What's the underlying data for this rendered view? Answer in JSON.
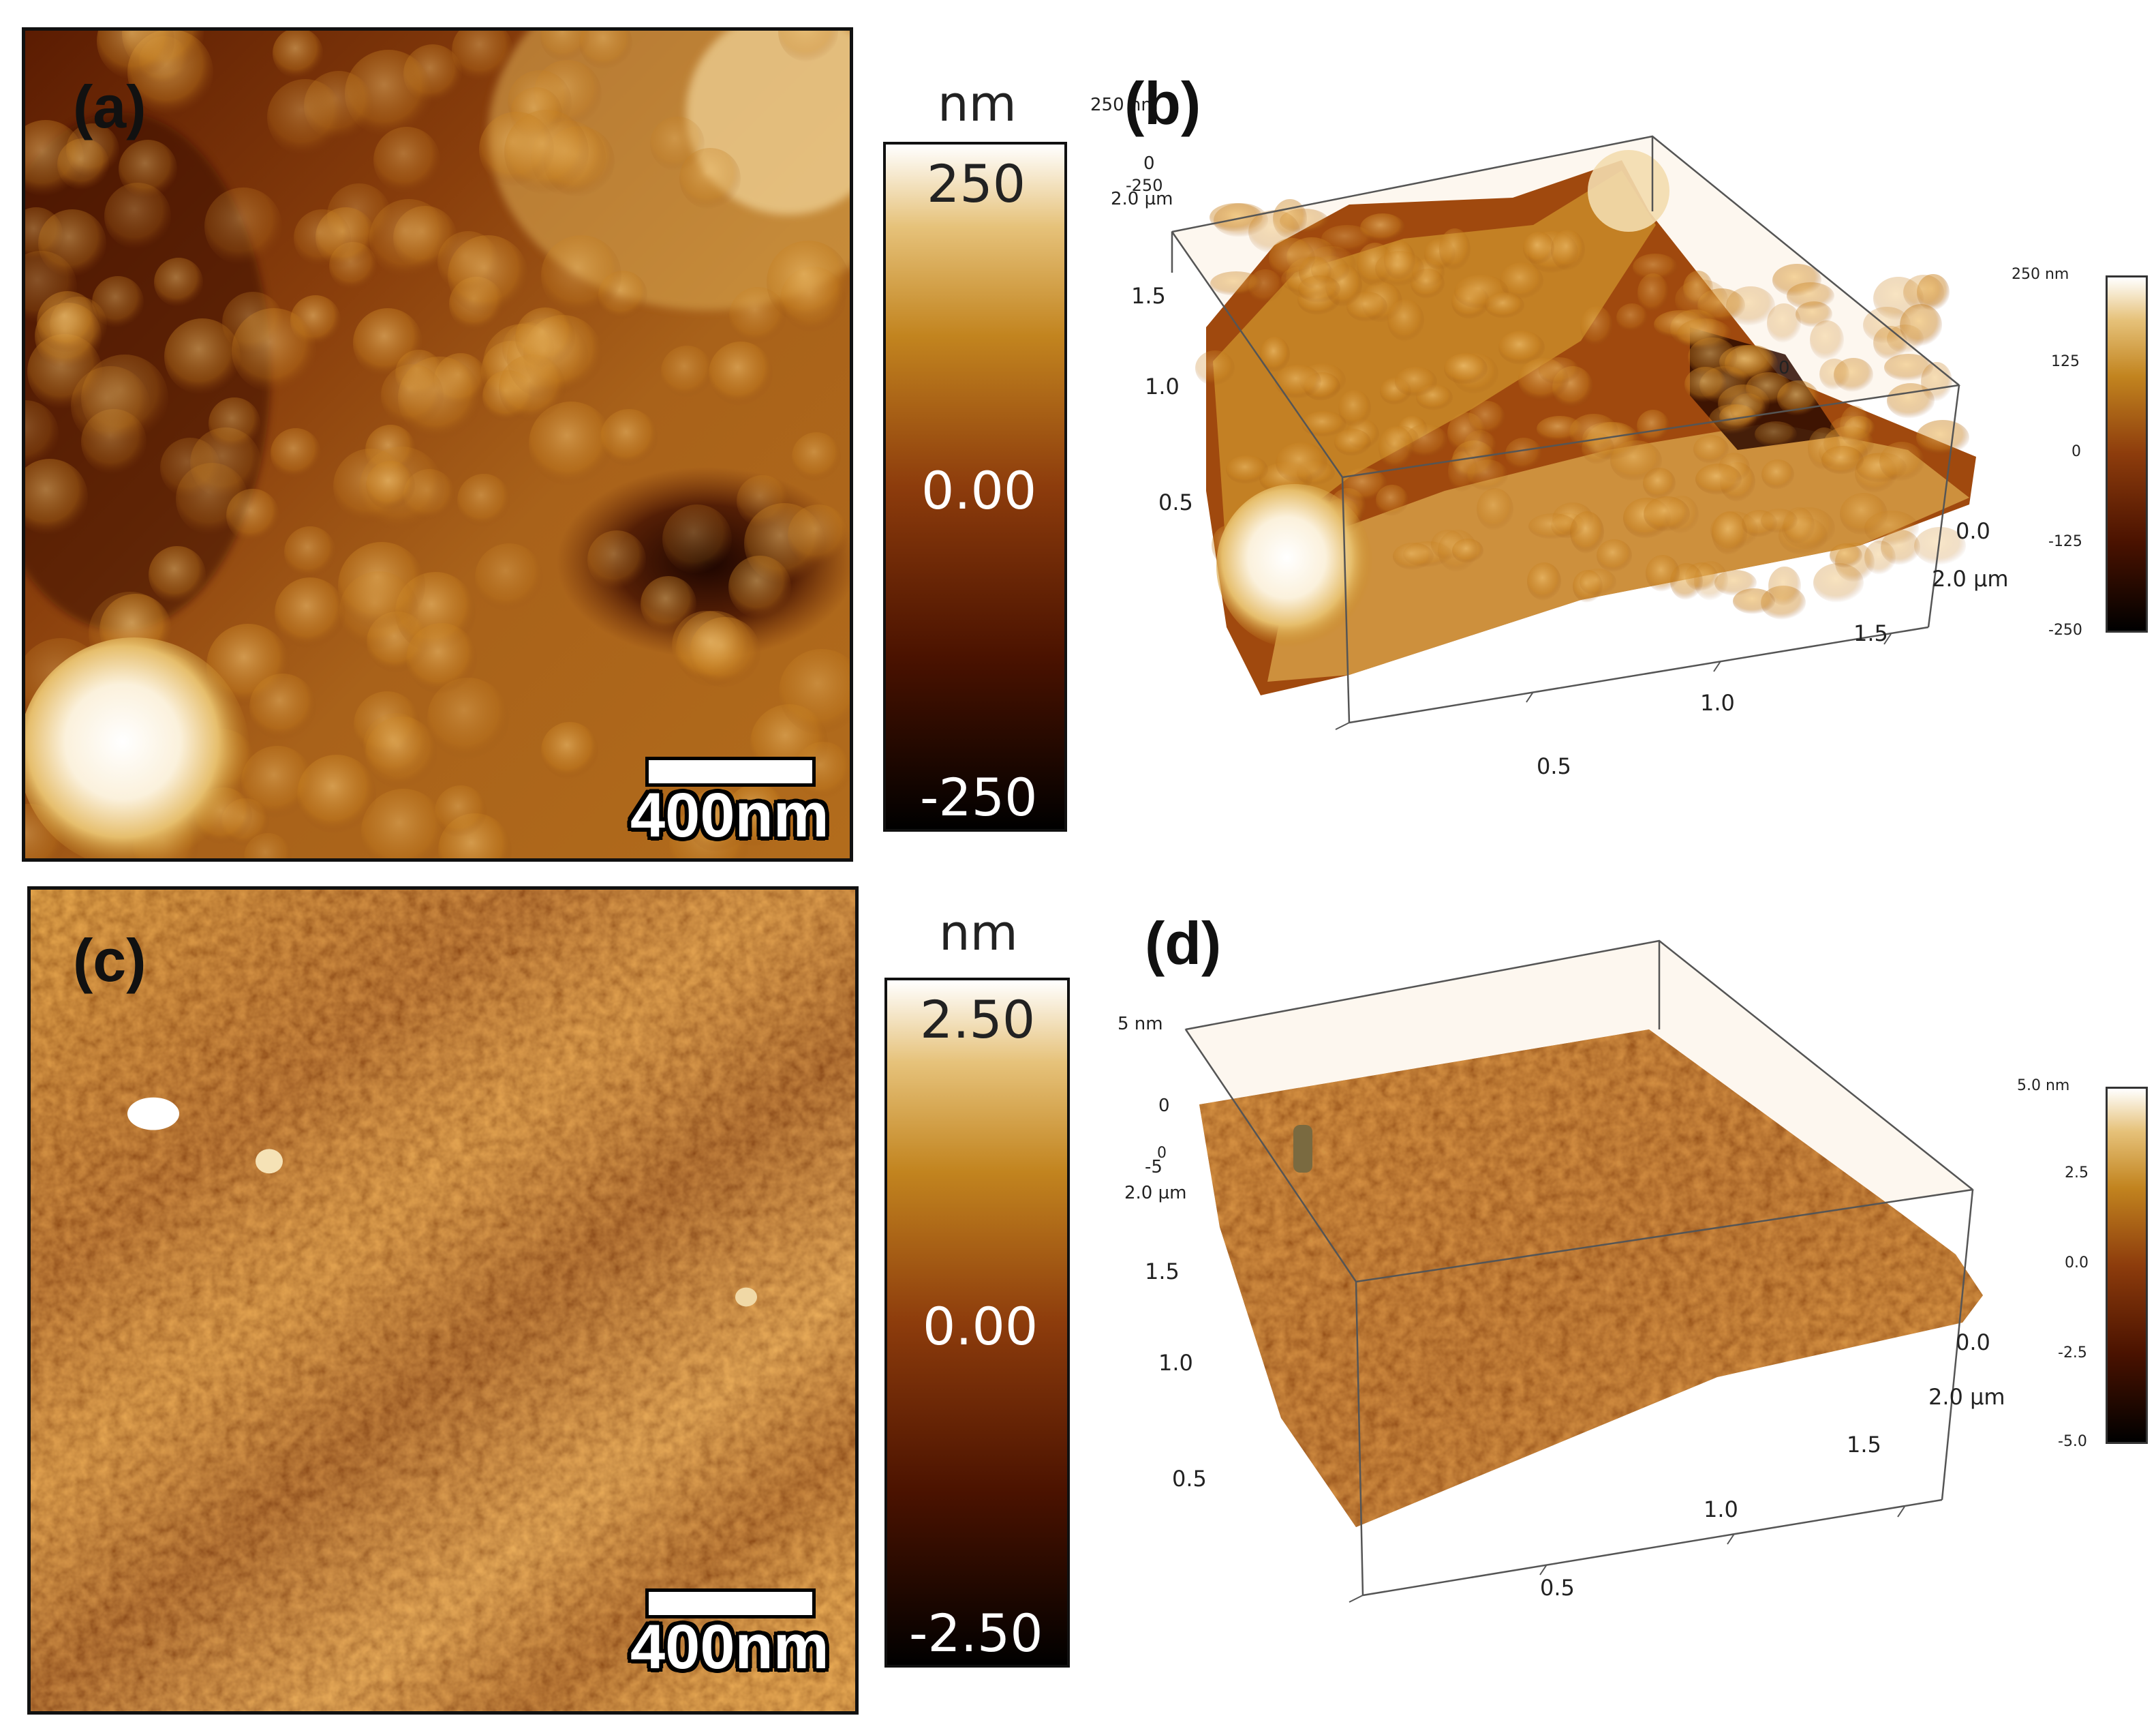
{
  "panels": {
    "a": {
      "letter": "(a)",
      "scalebar": "400nm",
      "colorbar": {
        "unit": "nm",
        "max": "250",
        "mid": "0.00",
        "min": "-250"
      }
    },
    "b": {
      "letter": "(b)",
      "z_top": "250 nm",
      "z_zero": "0",
      "z_bottom": "-250",
      "y_corner": "2.0 µm",
      "y_ticks": [
        "1.5",
        "1.0",
        "0.5"
      ],
      "x_ticks": [
        "0.5",
        "1.0",
        "1.5"
      ],
      "x_end": "2.0 µm",
      "x_zero": "0.0",
      "inner_zero": "0",
      "colorbar": {
        "max": "250 nm",
        "t1": "125",
        "t2": "0",
        "t3": "-125",
        "min": "-250"
      }
    },
    "c": {
      "letter": "(c)",
      "scalebar": "400nm",
      "colorbar": {
        "unit": "nm",
        "max": "2.50",
        "mid": "0.00",
        "min": "-2.50"
      }
    },
    "d": {
      "letter": "(d)",
      "z_top": "5 nm",
      "z_zero": "0",
      "z_bottom": "-5",
      "y_corner": "2.0 µm",
      "y_ticks": [
        "1.5",
        "1.0",
        "0.5"
      ],
      "x_ticks": [
        "0.5",
        "1.0",
        "1.5"
      ],
      "x_end": "2.0 µm",
      "x_zero": "0.0",
      "inner_zero": "0",
      "colorbar": {
        "max": "5.0 nm",
        "t1": "2.5",
        "t2": "0.0",
        "t3": "-2.5",
        "min": "-5.0"
      }
    }
  },
  "colors": {
    "afm_dark": "#1a0500",
    "afm_mid": "#8a3a0a",
    "afm_gold": "#c98a20",
    "afm_light": "#fff6e6"
  }
}
